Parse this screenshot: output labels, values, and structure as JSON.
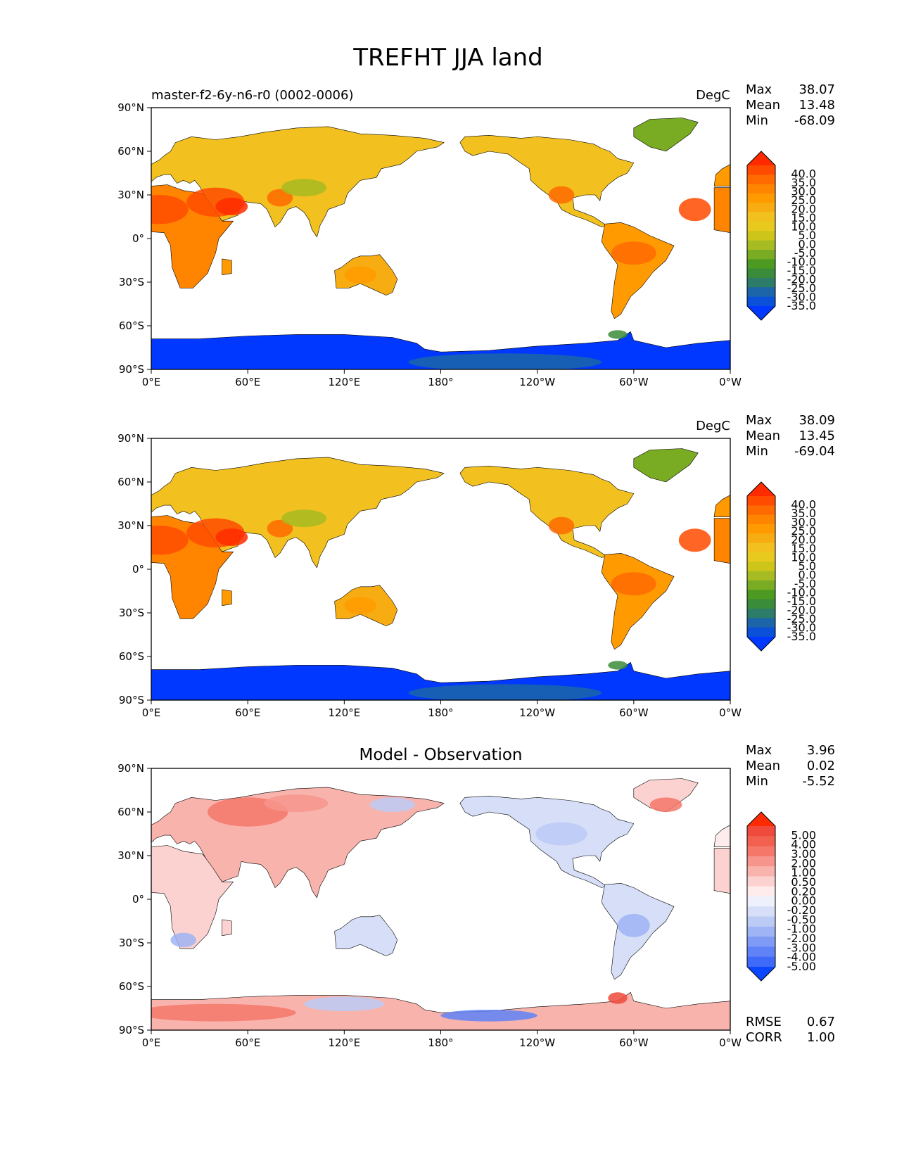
{
  "figure": {
    "title": "TREFHT JJA land"
  },
  "chart_data": [
    {
      "type": "heatmap",
      "title": "master-f2-6y-n6-r0 (0002-0006)",
      "units": "DegC",
      "stats": {
        "max_label": "Max",
        "max": "38.07",
        "mean_label": "Mean",
        "mean": "13.48",
        "min_label": "Min",
        "min": "-68.09"
      },
      "xlim": [
        0,
        360
      ],
      "ylim": [
        -90,
        90
      ],
      "xticks": [
        "0°E",
        "60°E",
        "120°E",
        "180°",
        "120°W",
        "60°W",
        "0°W"
      ],
      "yticks": [
        "90°N",
        "60°N",
        "30°N",
        "0°",
        "30°S",
        "60°S",
        "90°S"
      ],
      "colorbar": {
        "levels": [
          "40.0",
          "35.0",
          "30.0",
          "25.0",
          "20.0",
          "15.0",
          "10.0",
          "5.0",
          "0.0",
          "-5.0",
          "-10.0",
          "-15.0",
          "-20.0",
          "-25.0",
          "-30.0",
          "-35.0"
        ],
        "colors": [
          "#ff2a00",
          "#ff4b00",
          "#ff6a00",
          "#ff8500",
          "#ff9b00",
          "#f7ad12",
          "#f2c11f",
          "#e8c91e",
          "#cdc51a",
          "#a7bb22",
          "#79ab23",
          "#4d9a22",
          "#3a8c3a",
          "#2d7c6a",
          "#1b65a8",
          "#0a50d8",
          "#0038ff"
        ]
      }
    },
    {
      "type": "heatmap",
      "title": "",
      "units": "DegC",
      "stats": {
        "max_label": "Max",
        "max": "38.09",
        "mean_label": "Mean",
        "mean": "13.45",
        "min_label": "Min",
        "min": "-69.04"
      },
      "xlim": [
        0,
        360
      ],
      "ylim": [
        -90,
        90
      ],
      "xticks": [
        "0°E",
        "60°E",
        "120°E",
        "180°",
        "120°W",
        "60°W",
        "0°W"
      ],
      "yticks": [
        "90°N",
        "60°N",
        "30°N",
        "0°",
        "30°S",
        "60°S",
        "90°S"
      ],
      "colorbar": {
        "levels": [
          "40.0",
          "35.0",
          "30.0",
          "25.0",
          "20.0",
          "15.0",
          "10.0",
          "5.0",
          "0.0",
          "-5.0",
          "-10.0",
          "-15.0",
          "-20.0",
          "-25.0",
          "-30.0",
          "-35.0"
        ],
        "colors": [
          "#ff2a00",
          "#ff4b00",
          "#ff6a00",
          "#ff8500",
          "#ff9b00",
          "#f7ad12",
          "#f2c11f",
          "#e8c91e",
          "#cdc51a",
          "#a7bb22",
          "#79ab23",
          "#4d9a22",
          "#3a8c3a",
          "#2d7c6a",
          "#1b65a8",
          "#0a50d8",
          "#0038ff"
        ]
      }
    },
    {
      "type": "heatmap",
      "title": "Model - Observation",
      "units": "",
      "stats": {
        "max_label": "Max",
        "max": "3.96",
        "mean_label": "Mean",
        "mean": "0.02",
        "min_label": "Min",
        "min": "-5.52"
      },
      "extra_stats": {
        "rmse_label": "RMSE",
        "rmse": "0.67",
        "corr_label": "CORR",
        "corr": "1.00"
      },
      "xlim": [
        0,
        360
      ],
      "ylim": [
        -90,
        90
      ],
      "xticks": [
        "0°E",
        "60°E",
        "120°E",
        "180°",
        "120°W",
        "60°W",
        "0°W"
      ],
      "yticks": [
        "90°N",
        "60°N",
        "30°N",
        "0°",
        "30°S",
        "60°S",
        "90°S"
      ],
      "colorbar": {
        "levels": [
          "5.00",
          "4.00",
          "3.00",
          "2.00",
          "1.00",
          "0.50",
          "0.20",
          "0.00",
          "-0.20",
          "-0.50",
          "-1.00",
          "-2.00",
          "-3.00",
          "-4.00",
          "-5.00"
        ],
        "colors": [
          "#ff2a00",
          "#ef4a3c",
          "#f2604f",
          "#f4776a",
          "#f7958c",
          "#f9b3ad",
          "#fbd2cf",
          "#fdeceb",
          "#eef1fb",
          "#d6def8",
          "#bccaf6",
          "#9fb4f5",
          "#7f9bf5",
          "#5f82f7",
          "#3f69f9",
          "#0a46ff"
        ]
      }
    }
  ]
}
